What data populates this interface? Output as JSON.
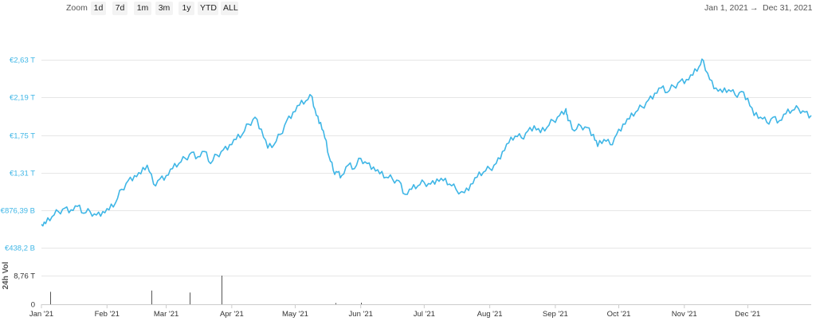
{
  "toolbar": {
    "zoom_label": "Zoom",
    "buttons": [
      "1d",
      "7d",
      "1m",
      "3m",
      "1y",
      "YTD",
      "ALL"
    ],
    "range_start": "Jan 1, 2021",
    "range_arrow": "→",
    "range_end": "Dec 31, 2021"
  },
  "colors": {
    "line": "#3fb6e6",
    "grid": "#e6e6e6",
    "volume": "#555555"
  },
  "chart_data": [
    {
      "type": "line",
      "title": "",
      "xlabel": "",
      "ylabel": "",
      "x_range": [
        "2021-01-01",
        "2021-12-31"
      ],
      "x_ticks": [
        "Jan '21",
        "Feb '21",
        "Mar '21",
        "Apr '21",
        "May '21",
        "Jun '21",
        "Jul '21",
        "Aug '21",
        "Sep '21",
        "Oct '21",
        "Nov '21",
        "Dec '21"
      ],
      "y_ticks": [
        {
          "value": 0.4382,
          "label": "€438,2 B"
        },
        {
          "value": 0.87639,
          "label": "€876,39 B"
        },
        {
          "value": 1.31,
          "label": "€1,31 T"
        },
        {
          "value": 1.75,
          "label": "€1,75 T"
        },
        {
          "value": 2.19,
          "label": "€2,19 T"
        },
        {
          "value": 2.63,
          "label": "€2,63 T"
        }
      ],
      "unit": "T EUR",
      "grid": true,
      "series": [
        {
          "x": [
            "2021-01-01",
            "2021-01-03",
            "2021-01-06",
            "2021-01-09",
            "2021-01-12",
            "2021-01-15",
            "2021-01-18",
            "2021-01-21",
            "2021-01-24",
            "2021-01-27",
            "2021-01-30",
            "2021-02-02",
            "2021-02-05",
            "2021-02-08",
            "2021-02-11",
            "2021-02-14",
            "2021-02-17",
            "2021-02-20",
            "2021-02-23",
            "2021-02-26",
            "2021-03-01",
            "2021-03-04",
            "2021-03-07",
            "2021-03-10",
            "2021-03-13",
            "2021-03-16",
            "2021-03-19",
            "2021-03-22",
            "2021-03-25",
            "2021-03-28",
            "2021-03-31",
            "2021-04-03",
            "2021-04-06",
            "2021-04-09",
            "2021-04-12",
            "2021-04-15",
            "2021-04-18",
            "2021-04-21",
            "2021-04-24",
            "2021-04-27",
            "2021-04-30",
            "2021-05-03",
            "2021-05-06",
            "2021-05-09",
            "2021-05-11",
            "2021-05-13",
            "2021-05-15",
            "2021-05-17",
            "2021-05-19",
            "2021-05-21",
            "2021-05-23",
            "2021-05-26",
            "2021-05-29",
            "2021-06-01",
            "2021-06-04",
            "2021-06-07",
            "2021-06-10",
            "2021-06-13",
            "2021-06-16",
            "2021-06-19",
            "2021-06-22",
            "2021-06-25",
            "2021-06-28",
            "2021-07-01",
            "2021-07-04",
            "2021-07-07",
            "2021-07-10",
            "2021-07-13",
            "2021-07-16",
            "2021-07-20",
            "2021-07-23",
            "2021-07-26",
            "2021-07-29",
            "2021-08-01",
            "2021-08-04",
            "2021-08-07",
            "2021-08-10",
            "2021-08-13",
            "2021-08-16",
            "2021-08-19",
            "2021-08-22",
            "2021-08-25",
            "2021-08-28",
            "2021-08-31",
            "2021-09-03",
            "2021-09-06",
            "2021-09-07",
            "2021-09-10",
            "2021-09-13",
            "2021-09-16",
            "2021-09-19",
            "2021-09-21",
            "2021-09-24",
            "2021-09-27",
            "2021-09-30",
            "2021-10-03",
            "2021-10-06",
            "2021-10-09",
            "2021-10-12",
            "2021-10-15",
            "2021-10-18",
            "2021-10-21",
            "2021-10-24",
            "2021-10-27",
            "2021-10-30",
            "2021-11-02",
            "2021-11-05",
            "2021-11-08",
            "2021-11-10",
            "2021-11-13",
            "2021-11-16",
            "2021-11-19",
            "2021-11-22",
            "2021-11-25",
            "2021-11-28",
            "2021-12-01",
            "2021-12-04",
            "2021-12-07",
            "2021-12-10",
            "2021-12-13",
            "2021-12-16",
            "2021-12-19",
            "2021-12-22",
            "2021-12-25",
            "2021-12-28",
            "2021-12-31"
          ],
          "values": [
            0.71,
            0.72,
            0.8,
            0.86,
            0.9,
            0.88,
            0.92,
            0.84,
            0.86,
            0.82,
            0.86,
            0.88,
            0.96,
            1.12,
            1.22,
            1.28,
            1.3,
            1.4,
            1.18,
            1.24,
            1.28,
            1.36,
            1.42,
            1.48,
            1.55,
            1.5,
            1.56,
            1.42,
            1.52,
            1.58,
            1.64,
            1.7,
            1.76,
            1.88,
            1.96,
            1.82,
            1.6,
            1.64,
            1.76,
            1.92,
            2.02,
            2.1,
            2.15,
            2.2,
            1.98,
            1.9,
            1.72,
            1.5,
            1.34,
            1.32,
            1.28,
            1.4,
            1.36,
            1.48,
            1.42,
            1.38,
            1.3,
            1.26,
            1.24,
            1.22,
            1.06,
            1.12,
            1.16,
            1.2,
            1.18,
            1.24,
            1.22,
            1.18,
            1.12,
            1.08,
            1.18,
            1.26,
            1.32,
            1.36,
            1.42,
            1.56,
            1.66,
            1.74,
            1.72,
            1.8,
            1.86,
            1.78,
            1.84,
            1.92,
            1.98,
            2.06,
            1.92,
            1.8,
            1.86,
            1.84,
            1.76,
            1.62,
            1.7,
            1.64,
            1.76,
            1.88,
            1.94,
            2.02,
            2.08,
            2.16,
            2.24,
            2.3,
            2.25,
            2.32,
            2.38,
            2.4,
            2.45,
            2.55,
            2.62,
            2.4,
            2.3,
            2.25,
            2.28,
            2.22,
            2.26,
            2.18,
            1.98,
            1.96,
            1.9,
            1.96,
            1.92,
            2.0,
            2.04,
            2.06,
            2.02,
            1.98
          ]
        }
      ]
    },
    {
      "type": "bar",
      "title": "",
      "ylabel": "24h Vol",
      "y_ticks": [
        {
          "value": 0,
          "label": "0"
        },
        {
          "value": 8.76,
          "label": "8,76 T"
        }
      ],
      "x": [
        "2021-01-05",
        "2021-02-22",
        "2021-03-12",
        "2021-03-27",
        "2021-05-20",
        "2021-06-01"
      ],
      "values": [
        3.8,
        4.2,
        3.6,
        8.76,
        0.4,
        0.5
      ]
    }
  ]
}
